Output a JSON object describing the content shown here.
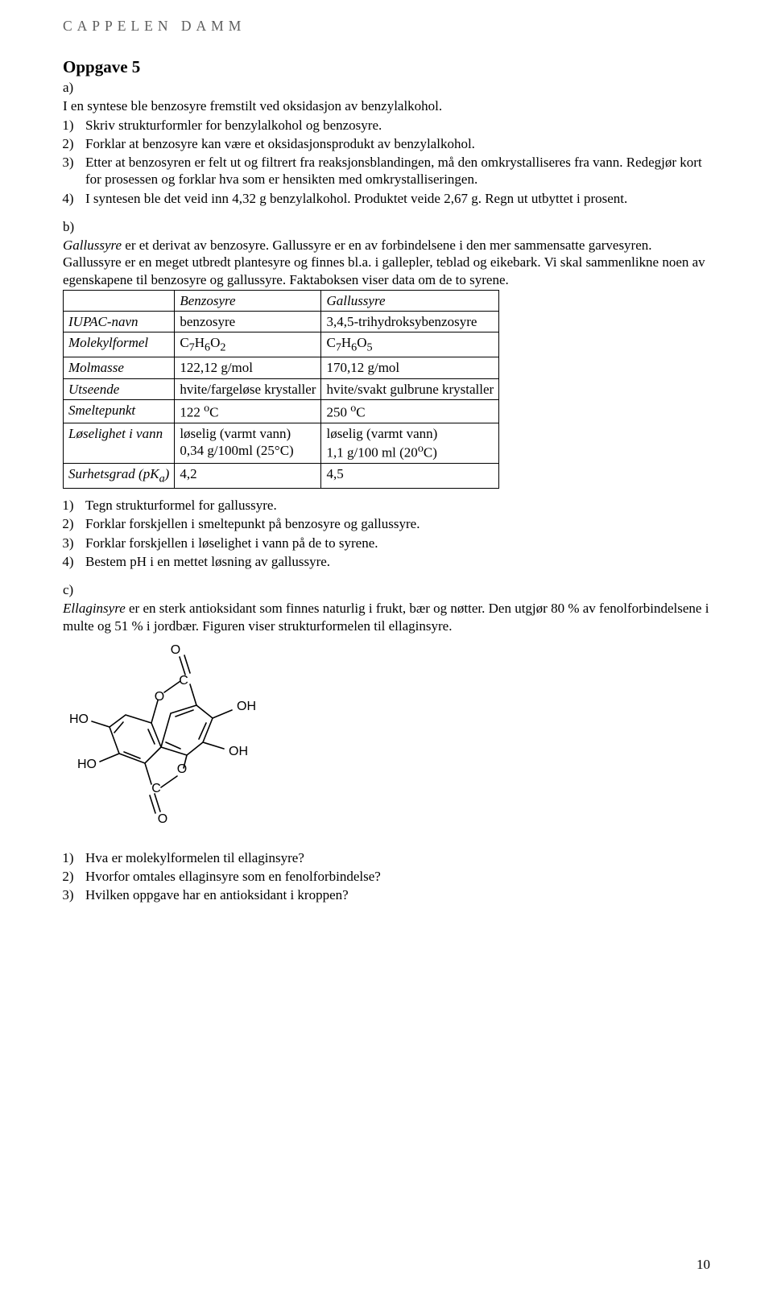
{
  "brand": "CAPPELEN DAMM",
  "title": "Oppgave 5",
  "part_a_label": "a)",
  "part_a_intro": "I en syntese ble benzosyre fremstilt ved oksidasjon av benzylalkohol.",
  "part_a_items": [
    "Skriv strukturformler for benzylalkohol og benzosyre.",
    "Forklar at benzosyre kan være et oksidasjonsprodukt av benzylalkohol.",
    "Etter at benzosyren er felt ut og filtrert fra reaksjonsblandingen, må den omkrystalliseres fra vann. Redegjør kort for prosessen og forklar hva som er hensikten med omkrystalliseringen.",
    "I syntesen ble det veid inn 4,32 g benzylalkohol. Produktet veide 2,67 g. Regn ut utbyttet i prosent."
  ],
  "part_b_label": "b)",
  "part_b_run": {
    "lead_italic": "Gallussyre",
    "rest": " er et derivat av benzosyre. Gallussyre er en av forbindelsene i den mer sammensatte garvesyren. Gallussyre er en meget utbredt plantesyre og finnes bl.a. i gallepler, teblad og eikebark. Vi skal sammenlikne noen av egenskapene til benzosyre og gallussyre. Faktaboksen viser data om de to syrene."
  },
  "table": {
    "header": [
      "",
      "Benzosyre",
      "Gallussyre"
    ],
    "rows": [
      {
        "label": "IUPAC-navn",
        "c1": "benzosyre",
        "c2": "3,4,5-trihydroksybenzosyre"
      },
      {
        "label": "Molekylformel",
        "c1_html": "C<sub>7</sub>H<sub>6</sub>O<sub>2</sub>",
        "c2_html": "C<sub>7</sub>H<sub>6</sub>O<sub>5</sub>"
      },
      {
        "label": "Molmasse",
        "c1": "122,12 g/mol",
        "c2": "170,12 g/mol"
      },
      {
        "label": "Utseende",
        "c1": "hvite/fargeløse krystaller",
        "c2": "hvite/svakt gulbrune krystaller"
      },
      {
        "label": "Smeltepunkt",
        "c1_html": "122 <sup>o</sup>C",
        "c2_html": "250 <sup>o</sup>C"
      },
      {
        "label": "Løselighet i vann",
        "c1_html": "løselig (varmt vann)<br>0,34 g/100ml (25°C)",
        "c2_html": "løselig (varmt vann)<br>1,1 g/100 ml (20<sup>o</sup>C)"
      },
      {
        "label_html": "Surhetsgrad (pK<sub>a</sub>)",
        "c1": "4,2",
        "c2": "4,5"
      }
    ]
  },
  "part_b_items": [
    "Tegn strukturformel for gallussyre.",
    "Forklar forskjellen i smeltepunkt på benzosyre og gallussyre.",
    "Forklar forskjellen i løselighet i vann på de to syrene.",
    "Bestem pH i en mettet løsning av gallussyre."
  ],
  "part_c_label": "c)",
  "part_c_run": {
    "lead_italic": "Ellaginsyre",
    "rest": " er en sterk antioksidant som finnes naturlig i frukt, bær og nøtter. Den utgjør 80 % av fenolforbindelsene i multe og 51 % i jordbær. Figuren viser strukturformelen til ellaginsyre."
  },
  "chem_labels": {
    "O_top": "O",
    "OH_upper_right": "OH",
    "OH_right": "OH",
    "HO_upper_left": "HO",
    "HO_lower_left": "HO",
    "O_left_ring": "O",
    "O_right_ring": "O",
    "O_bottom": "O",
    "C_top": "C",
    "C_bottom": "C"
  },
  "part_c_items": [
    "Hva er molekylformelen til ellaginsyre?",
    "Hvorfor omtales ellaginsyre som en fenolforbindelse?",
    "Hvilken oppgave har en antioksidant i kroppen?"
  ],
  "page_number": "10"
}
